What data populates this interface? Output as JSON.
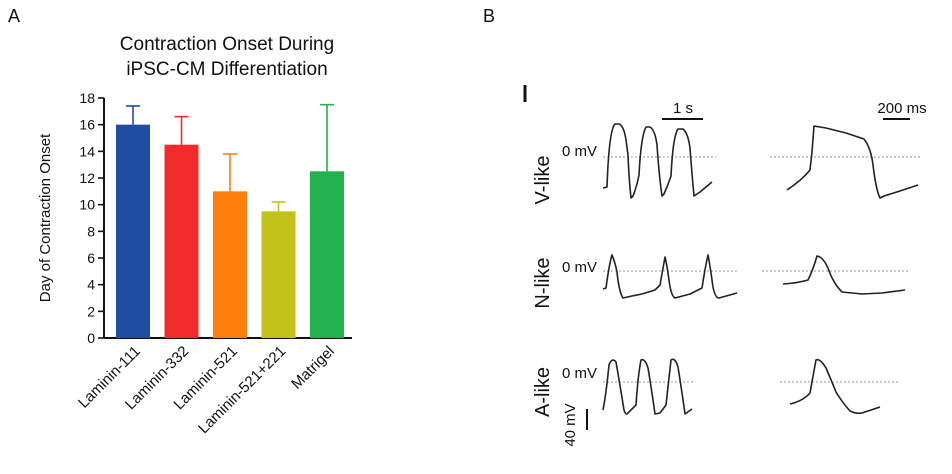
{
  "panels": {
    "a_label": "A",
    "b_label": "B"
  },
  "chart_data": {
    "type": "bar",
    "title_line1": "Contraction Onset During",
    "title_line2": "iPSC-CM Differentiation",
    "xlabel": "",
    "ylabel": "Day of Contraction Onset",
    "ylim": [
      0,
      18
    ],
    "yticks": [
      0,
      2,
      4,
      6,
      8,
      10,
      12,
      14,
      16,
      18
    ],
    "categories": [
      "Laminin-111",
      "Laminin-332",
      "Laminin-521",
      "Laminin-521+221",
      "Matrigel"
    ],
    "values": [
      16,
      14.5,
      11,
      9.5,
      12.5
    ],
    "error_upper": [
      1.4,
      2.1,
      2.8,
      0.7,
      5.0
    ],
    "colors": [
      "#1f4ea0",
      "#f12a2a",
      "#ff7f0e",
      "#c3c21a",
      "#22b14c"
    ],
    "grid": false,
    "legend": "none"
  },
  "panel_b": {
    "scale_time_long": "1 s",
    "scale_time_short": "200 ms",
    "scale_voltage": "40 mV",
    "zero_label": "0 mV",
    "rows": [
      "V-like",
      "N-like",
      "A-like"
    ]
  }
}
